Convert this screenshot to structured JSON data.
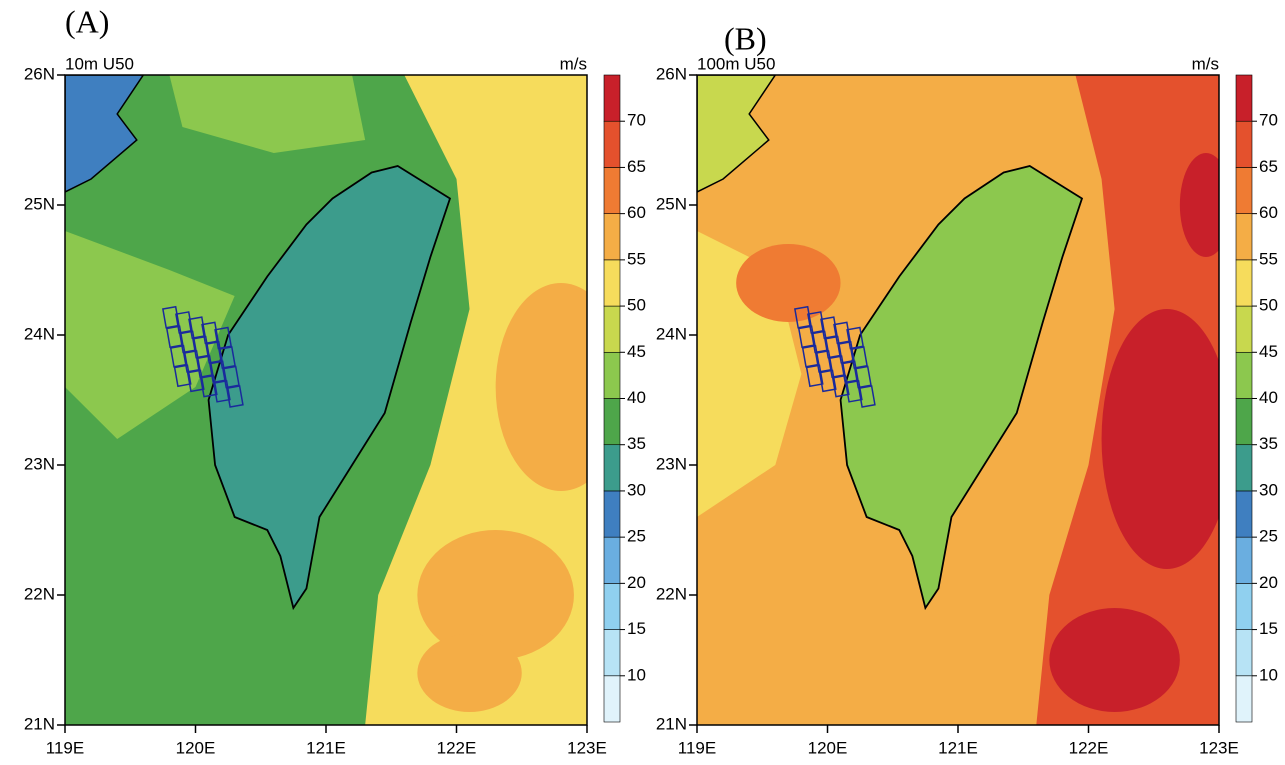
{
  "panels": [
    {
      "label": "(A)",
      "title": "10m U50",
      "unit": "m/s"
    },
    {
      "label": "(B)",
      "title": "100m U50",
      "unit": "m/s"
    }
  ],
  "lon_range": [
    119,
    123
  ],
  "lat_range": [
    21,
    26
  ],
  "lon_ticks": [
    {
      "value": 119,
      "label": "119E"
    },
    {
      "value": 120,
      "label": "120E"
    },
    {
      "value": 121,
      "label": "121E"
    },
    {
      "value": 122,
      "label": "122E"
    },
    {
      "value": 123,
      "label": "123E"
    }
  ],
  "lat_ticks": [
    {
      "value": 26,
      "label": "26N"
    },
    {
      "value": 25,
      "label": "25N"
    },
    {
      "value": 24,
      "label": "24N"
    },
    {
      "value": 23,
      "label": "23N"
    },
    {
      "value": 22,
      "label": "22N"
    },
    {
      "value": 21,
      "label": "21N"
    }
  ],
  "colorbar": {
    "ticks": [
      10,
      15,
      20,
      25,
      30,
      35,
      40,
      45,
      50,
      55,
      60,
      65,
      70
    ],
    "colors": [
      "#e0f3fb",
      "#b7e3f5",
      "#90d0ef",
      "#6aaee0",
      "#3f7fc0",
      "#3c9c8c",
      "#4ea64a",
      "#8cc84e",
      "#c8d84e",
      "#f6dc5c",
      "#f4ad46",
      "#ef7b33",
      "#e4512d",
      "#c8202a"
    ]
  }
}
